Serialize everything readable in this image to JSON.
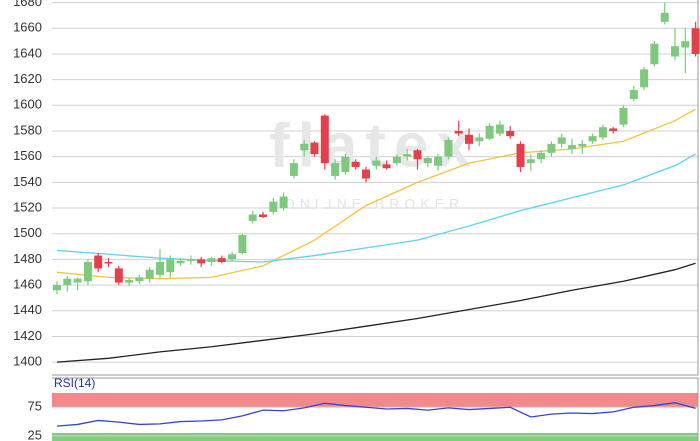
{
  "chart_data": [
    {
      "type": "candlestick",
      "watermark": "flatex",
      "watermark_sub": "ONLINE BROKER",
      "ylim": [
        1390,
        1682
      ],
      "yticks": [
        1400,
        1420,
        1440,
        1460,
        1480,
        1500,
        1520,
        1540,
        1560,
        1580,
        1600,
        1620,
        1640,
        1660,
        1680
      ],
      "grid": true,
      "up_color": "#7ec97e",
      "down_color": "#e2414b",
      "open": [
        1456,
        1460,
        1462,
        1463,
        1483,
        1478,
        1473,
        1462,
        1463,
        1465,
        1468,
        1470,
        1477,
        1479,
        1480,
        1478,
        1481,
        1480,
        1485,
        1510,
        1515,
        1517,
        1520,
        1545,
        1565,
        1571,
        1592,
        1545,
        1548,
        1556,
        1550,
        1553,
        1554,
        1555,
        1560,
        1565,
        1555,
        1553,
        1560,
        1580,
        1577,
        1572,
        1574,
        1578,
        1580,
        1570,
        1555,
        1558,
        1563,
        1570,
        1566,
        1568,
        1572,
        1575,
        1582,
        1585,
        1605,
        1614,
        1632,
        1665,
        1638,
        1645,
        1660
      ],
      "high": [
        1463,
        1467,
        1466,
        1480,
        1485,
        1481,
        1475,
        1466,
        1468,
        1474,
        1488,
        1483,
        1481,
        1483,
        1482,
        1482,
        1483,
        1486,
        1500,
        1518,
        1517,
        1528,
        1532,
        1558,
        1573,
        1572,
        1593,
        1558,
        1562,
        1558,
        1552,
        1560,
        1557,
        1562,
        1566,
        1566,
        1560,
        1562,
        1575,
        1588,
        1582,
        1578,
        1586,
        1588,
        1584,
        1572,
        1562,
        1565,
        1572,
        1578,
        1574,
        1573,
        1578,
        1585,
        1583,
        1600,
        1615,
        1630,
        1650,
        1680,
        1660,
        1660,
        1665
      ],
      "low": [
        1453,
        1455,
        1456,
        1460,
        1470,
        1474,
        1460,
        1459,
        1461,
        1462,
        1465,
        1466,
        1475,
        1476,
        1474,
        1475,
        1477,
        1479,
        1484,
        1508,
        1512,
        1515,
        1518,
        1543,
        1560,
        1560,
        1550,
        1542,
        1546,
        1550,
        1540,
        1550,
        1550,
        1553,
        1557,
        1550,
        1552,
        1549,
        1558,
        1576,
        1565,
        1568,
        1573,
        1576,
        1574,
        1548,
        1549,
        1555,
        1560,
        1567,
        1562,
        1562,
        1570,
        1573,
        1578,
        1583,
        1603,
        1612,
        1630,
        1663,
        1635,
        1625,
        1638
      ],
      "close": [
        1460,
        1465,
        1465,
        1478,
        1473,
        1477,
        1462,
        1464,
        1466,
        1472,
        1478,
        1480,
        1479,
        1480,
        1477,
        1481,
        1478,
        1484,
        1499,
        1515,
        1513,
        1525,
        1529,
        1555,
        1570,
        1562,
        1555,
        1555,
        1560,
        1552,
        1543,
        1557,
        1551,
        1560,
        1562,
        1558,
        1559,
        1560,
        1573,
        1578,
        1570,
        1575,
        1584,
        1585,
        1576,
        1552,
        1558,
        1563,
        1570,
        1575,
        1569,
        1570,
        1576,
        1583,
        1580,
        1598,
        1612,
        1628,
        1648,
        1672,
        1646,
        1650,
        1640
      ],
      "lines": [
        {
          "color": "#f5c242",
          "x": [
            0,
            5,
            10,
            15,
            20,
            25,
            30,
            35,
            40,
            45,
            50,
            55,
            60,
            62
          ],
          "values": [
            1470,
            1466,
            1465,
            1466,
            1475,
            1495,
            1522,
            1540,
            1555,
            1563,
            1566,
            1572,
            1588,
            1597
          ]
        },
        {
          "color": "#5fd3ee",
          "x": [
            0,
            5,
            10,
            15,
            20,
            25,
            30,
            35,
            40,
            45,
            50,
            55,
            60,
            62
          ],
          "values": [
            1487,
            1484,
            1481,
            1479,
            1478,
            1483,
            1489,
            1495,
            1506,
            1518,
            1528,
            1538,
            1553,
            1562
          ]
        },
        {
          "color": "#222222",
          "x": [
            0,
            5,
            10,
            15,
            20,
            25,
            30,
            35,
            40,
            45,
            50,
            55,
            60,
            62
          ],
          "values": [
            1400,
            1403,
            1408,
            1412,
            1417,
            1422,
            1428,
            1434,
            1441,
            1448,
            1456,
            1463,
            1472,
            1477
          ]
        }
      ]
    },
    {
      "type": "line",
      "title": "RSI(14)",
      "color": "#3344dd",
      "ylim": [
        16,
        100
      ],
      "yticks": [
        25,
        75
      ],
      "bands": [
        {
          "from": 75,
          "to": 100,
          "color": "#f08a8a"
        },
        {
          "from": 16,
          "to": 30,
          "color": "#7fcf7f"
        }
      ],
      "x": [
        0,
        2,
        4,
        6,
        8,
        10,
        12,
        14,
        16,
        18,
        20,
        22,
        24,
        26,
        28,
        30,
        32,
        34,
        36,
        38,
        40,
        42,
        44,
        46,
        48,
        50,
        52,
        54,
        56,
        58,
        60,
        62
      ],
      "values": [
        42,
        45,
        52,
        49,
        45,
        46,
        50,
        51,
        53,
        60,
        70,
        69,
        74,
        82,
        78,
        75,
        72,
        73,
        70,
        74,
        71,
        73,
        75,
        58,
        63,
        65,
        64,
        67,
        75,
        78,
        83,
        73
      ]
    }
  ]
}
